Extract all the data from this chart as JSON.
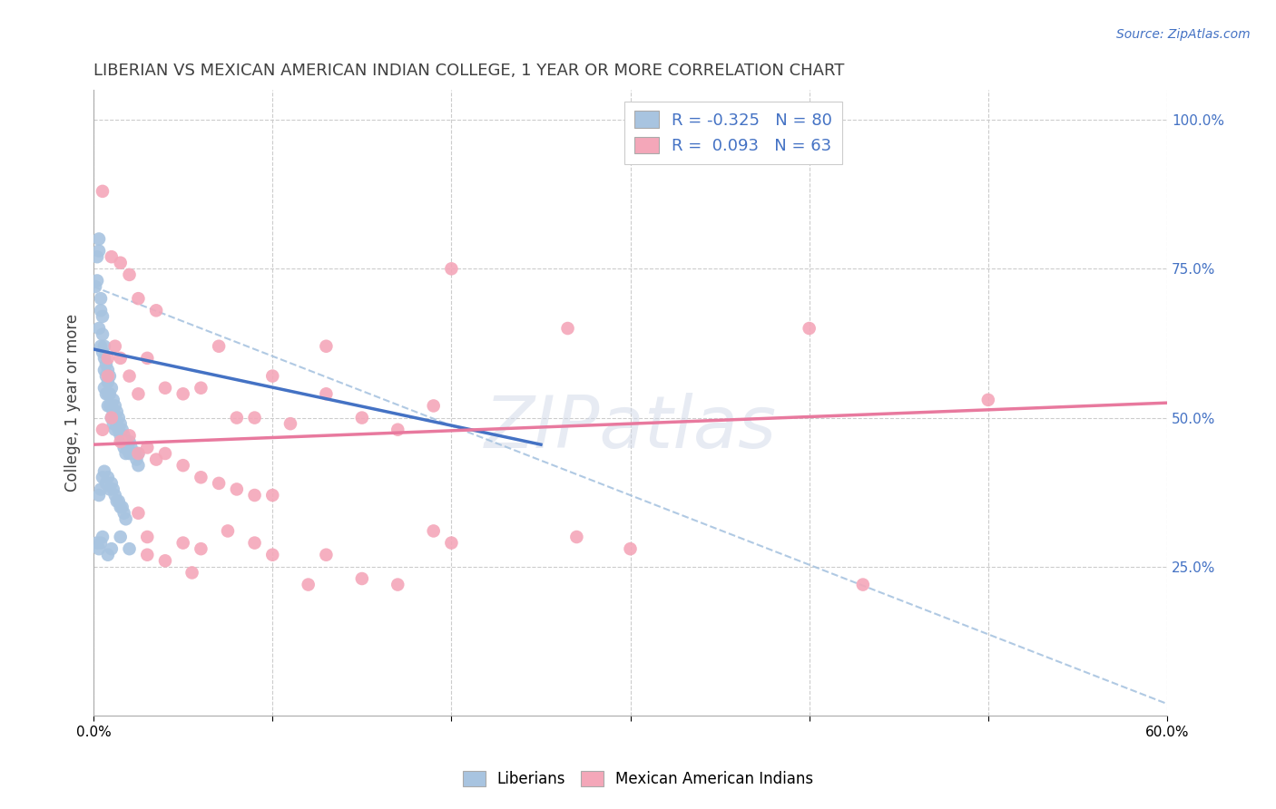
{
  "title": "LIBERIAN VS MEXICAN AMERICAN INDIAN COLLEGE, 1 YEAR OR MORE CORRELATION CHART",
  "source": "Source: ZipAtlas.com",
  "ylabel": "College, 1 year or more",
  "xlim": [
    0.0,
    0.6
  ],
  "ylim": [
    0.0,
    1.05
  ],
  "xticks": [
    0.0,
    0.1,
    0.2,
    0.3,
    0.4,
    0.5,
    0.6
  ],
  "xtick_labels": [
    "0.0%",
    "",
    "",
    "",
    "",
    "",
    "60.0%"
  ],
  "ytick_labels_right": [
    "25.0%",
    "50.0%",
    "75.0%",
    "100.0%"
  ],
  "yticks_right": [
    0.25,
    0.5,
    0.75,
    1.0
  ],
  "R_liberian": -0.325,
  "N_liberian": 80,
  "R_mexican": 0.093,
  "N_mexican": 63,
  "liberian_color": "#a8c4e0",
  "mexican_color": "#f4a7b9",
  "liberian_line_color": "#4472c4",
  "mexican_line_color": "#e8799e",
  "dashed_line_color": "#a8c4e0",
  "title_color": "#404040",
  "axis_color": "#4472c4",
  "lib_line_x0": 0.0,
  "lib_line_y0": 0.615,
  "lib_line_x1": 0.25,
  "lib_line_y1": 0.455,
  "mex_line_x0": 0.0,
  "mex_line_y0": 0.455,
  "mex_line_x1": 0.6,
  "mex_line_y1": 0.525,
  "dash_line_x0": 0.0,
  "dash_line_y0": 0.72,
  "dash_line_x1": 0.6,
  "dash_line_y1": 0.02,
  "liberian_points": [
    [
      0.001,
      0.72
    ],
    [
      0.002,
      0.73
    ],
    [
      0.002,
      0.77
    ],
    [
      0.003,
      0.78
    ],
    [
      0.003,
      0.8
    ],
    [
      0.003,
      0.65
    ],
    [
      0.004,
      0.68
    ],
    [
      0.004,
      0.7
    ],
    [
      0.004,
      0.62
    ],
    [
      0.005,
      0.64
    ],
    [
      0.005,
      0.61
    ],
    [
      0.005,
      0.67
    ],
    [
      0.006,
      0.6
    ],
    [
      0.006,
      0.58
    ],
    [
      0.006,
      0.62
    ],
    [
      0.006,
      0.55
    ],
    [
      0.007,
      0.57
    ],
    [
      0.007,
      0.54
    ],
    [
      0.007,
      0.59
    ],
    [
      0.008,
      0.56
    ],
    [
      0.008,
      0.54
    ],
    [
      0.008,
      0.52
    ],
    [
      0.008,
      0.58
    ],
    [
      0.009,
      0.54
    ],
    [
      0.009,
      0.57
    ],
    [
      0.009,
      0.52
    ],
    [
      0.01,
      0.55
    ],
    [
      0.01,
      0.52
    ],
    [
      0.01,
      0.5
    ],
    [
      0.011,
      0.53
    ],
    [
      0.011,
      0.51
    ],
    [
      0.011,
      0.49
    ],
    [
      0.012,
      0.52
    ],
    [
      0.012,
      0.5
    ],
    [
      0.012,
      0.48
    ],
    [
      0.013,
      0.51
    ],
    [
      0.013,
      0.49
    ],
    [
      0.014,
      0.5
    ],
    [
      0.014,
      0.48
    ],
    [
      0.015,
      0.49
    ],
    [
      0.015,
      0.47
    ],
    [
      0.016,
      0.48
    ],
    [
      0.016,
      0.46
    ],
    [
      0.017,
      0.47
    ],
    [
      0.017,
      0.45
    ],
    [
      0.018,
      0.46
    ],
    [
      0.018,
      0.44
    ],
    [
      0.019,
      0.45
    ],
    [
      0.02,
      0.46
    ],
    [
      0.02,
      0.44
    ],
    [
      0.021,
      0.45
    ],
    [
      0.022,
      0.44
    ],
    [
      0.023,
      0.44
    ],
    [
      0.024,
      0.43
    ],
    [
      0.025,
      0.44
    ],
    [
      0.025,
      0.42
    ],
    [
      0.003,
      0.37
    ],
    [
      0.004,
      0.38
    ],
    [
      0.005,
      0.4
    ],
    [
      0.006,
      0.41
    ],
    [
      0.007,
      0.39
    ],
    [
      0.008,
      0.4
    ],
    [
      0.009,
      0.38
    ],
    [
      0.01,
      0.39
    ],
    [
      0.011,
      0.38
    ],
    [
      0.012,
      0.37
    ],
    [
      0.013,
      0.36
    ],
    [
      0.014,
      0.36
    ],
    [
      0.015,
      0.35
    ],
    [
      0.016,
      0.35
    ],
    [
      0.017,
      0.34
    ],
    [
      0.018,
      0.33
    ],
    [
      0.002,
      0.29
    ],
    [
      0.003,
      0.28
    ],
    [
      0.004,
      0.29
    ],
    [
      0.005,
      0.3
    ],
    [
      0.008,
      0.27
    ],
    [
      0.01,
      0.28
    ],
    [
      0.015,
      0.3
    ],
    [
      0.02,
      0.28
    ]
  ],
  "mexican_points": [
    [
      0.005,
      0.88
    ],
    [
      0.01,
      0.77
    ],
    [
      0.015,
      0.76
    ],
    [
      0.02,
      0.74
    ],
    [
      0.025,
      0.7
    ],
    [
      0.035,
      0.68
    ],
    [
      0.008,
      0.6
    ],
    [
      0.012,
      0.62
    ],
    [
      0.07,
      0.62
    ],
    [
      0.13,
      0.62
    ],
    [
      0.2,
      0.75
    ],
    [
      0.265,
      0.65
    ],
    [
      0.008,
      0.57
    ],
    [
      0.015,
      0.6
    ],
    [
      0.02,
      0.57
    ],
    [
      0.025,
      0.54
    ],
    [
      0.03,
      0.6
    ],
    [
      0.04,
      0.55
    ],
    [
      0.05,
      0.54
    ],
    [
      0.06,
      0.55
    ],
    [
      0.08,
      0.5
    ],
    [
      0.09,
      0.5
    ],
    [
      0.1,
      0.57
    ],
    [
      0.11,
      0.49
    ],
    [
      0.13,
      0.54
    ],
    [
      0.15,
      0.5
    ],
    [
      0.17,
      0.48
    ],
    [
      0.19,
      0.52
    ],
    [
      0.005,
      0.48
    ],
    [
      0.01,
      0.5
    ],
    [
      0.015,
      0.46
    ],
    [
      0.02,
      0.47
    ],
    [
      0.025,
      0.44
    ],
    [
      0.03,
      0.45
    ],
    [
      0.035,
      0.43
    ],
    [
      0.04,
      0.44
    ],
    [
      0.05,
      0.42
    ],
    [
      0.06,
      0.4
    ],
    [
      0.07,
      0.39
    ],
    [
      0.08,
      0.38
    ],
    [
      0.09,
      0.37
    ],
    [
      0.1,
      0.37
    ],
    [
      0.025,
      0.34
    ],
    [
      0.03,
      0.3
    ],
    [
      0.03,
      0.27
    ],
    [
      0.04,
      0.26
    ],
    [
      0.05,
      0.29
    ],
    [
      0.055,
      0.24
    ],
    [
      0.06,
      0.28
    ],
    [
      0.075,
      0.31
    ],
    [
      0.09,
      0.29
    ],
    [
      0.1,
      0.27
    ],
    [
      0.12,
      0.22
    ],
    [
      0.13,
      0.27
    ],
    [
      0.15,
      0.23
    ],
    [
      0.17,
      0.22
    ],
    [
      0.19,
      0.31
    ],
    [
      0.2,
      0.29
    ],
    [
      0.27,
      0.3
    ],
    [
      0.3,
      0.28
    ],
    [
      0.4,
      0.65
    ],
    [
      0.43,
      0.22
    ],
    [
      0.5,
      0.53
    ]
  ]
}
